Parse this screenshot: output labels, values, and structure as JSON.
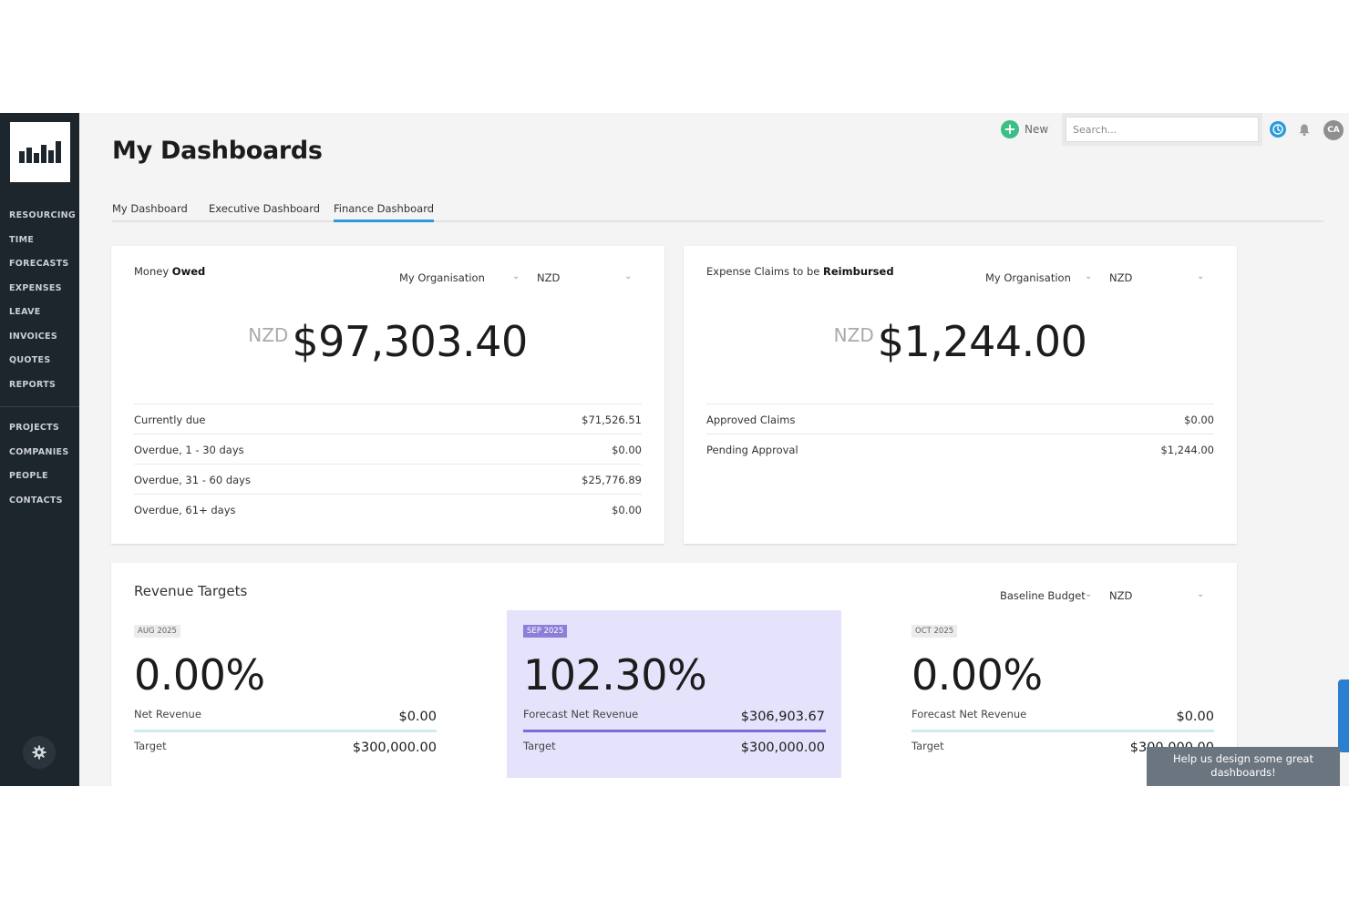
{
  "sidebar": {
    "logo_text": "pıd",
    "primary": [
      "RESOURCING",
      "TIME",
      "FORECASTS",
      "EXPENSES",
      "LEAVE",
      "INVOICES",
      "QUOTES",
      "REPORTS"
    ],
    "secondary": [
      "PROJECTS",
      "COMPANIES",
      "PEOPLE",
      "CONTACTS"
    ]
  },
  "header": {
    "title": "My Dashboards",
    "new_label": "New",
    "search_placeholder": "Search...",
    "avatar_initials": "CA"
  },
  "tabs": [
    {
      "label": "My Dashboard",
      "active": false
    },
    {
      "label": "Executive Dashboard",
      "active": false
    },
    {
      "label": "Finance Dashboard",
      "active": true
    }
  ],
  "money_owed": {
    "title_prefix": "Money ",
    "title_bold": "Owed",
    "org_select": "My Organisation",
    "currency_select": "NZD",
    "currency": "NZD",
    "amount": "$97,303.40",
    "rows": [
      {
        "label": "Currently due",
        "value": "$71,526.51"
      },
      {
        "label": "Overdue, 1 - 30 days",
        "value": "$0.00"
      },
      {
        "label": "Overdue, 31 - 60 days",
        "value": "$25,776.89"
      },
      {
        "label": "Overdue, 61+ days",
        "value": "$0.00"
      }
    ]
  },
  "expense_claims": {
    "title_prefix": "Expense Claims to be ",
    "title_bold": "Reimbursed",
    "org_select": "My Organisation",
    "currency_select": "NZD",
    "currency": "NZD",
    "amount": "$1,244.00",
    "rows": [
      {
        "label": "Approved Claims",
        "value": "$0.00"
      },
      {
        "label": "Pending Approval",
        "value": "$1,244.00"
      }
    ]
  },
  "revenue_targets": {
    "title": "Revenue Targets",
    "budget_select": "Baseline Budget",
    "currency_select": "NZD",
    "periods": [
      {
        "badge": "AUG 2025",
        "percent": "0.00%",
        "progress": 0.0,
        "metric_label": "Net Revenue",
        "metric_value": "$0.00",
        "target_label": "Target",
        "target_value": "$300,000.00",
        "highlight": false
      },
      {
        "badge": "SEP 2025",
        "percent": "102.30%",
        "progress": 1.0,
        "metric_label": "Forecast Net Revenue",
        "metric_value": "$306,903.67",
        "target_label": "Target",
        "target_value": "$300,000.00",
        "highlight": true
      },
      {
        "badge": "OCT 2025",
        "percent": "0.00%",
        "progress": 0.0,
        "metric_label": "Forecast Net Revenue",
        "metric_value": "$0.00",
        "target_label": "Target",
        "target_value": "$300,000.00",
        "highlight": false
      }
    ]
  },
  "feedback": {
    "line1": "Help us design some great",
    "line2": "dashboards!"
  }
}
